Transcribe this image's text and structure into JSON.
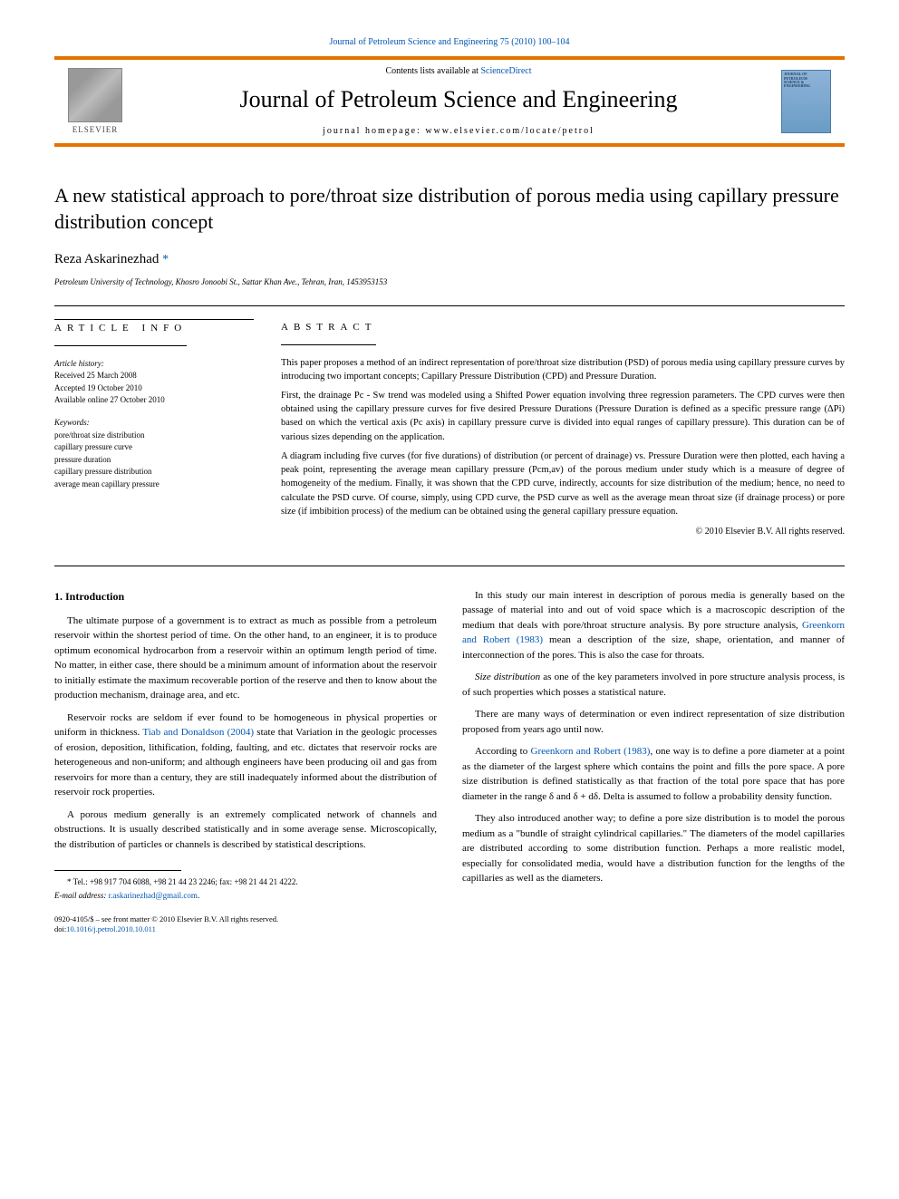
{
  "header": {
    "citation_prefix": "Journal of Petroleum Science and Engineering 75 (2010) 100–104",
    "contents_text": "Contents lists available at ",
    "contents_link": "ScienceDirect",
    "journal_name": "Journal of Petroleum Science and Engineering",
    "homepage_label": "journal homepage: ",
    "homepage_url": "www.elsevier.com/locate/petrol",
    "publisher_logo_label": "ELSEVIER",
    "cover_text_lines": [
      "JOURNAL OF",
      "PETROLEUM",
      "SCIENCE &",
      "ENGINEERING"
    ],
    "banner_accent": "#e47200",
    "link_color": "#0056b3"
  },
  "article": {
    "title": "A new statistical approach to pore/throat size distribution of porous media using capillary pressure distribution concept",
    "author_name": "Reza Askarinezhad",
    "author_mark": "*",
    "affiliation": "Petroleum University of Technology, Khosro Jonoobi St., Sattar Khan Ave., Tehran, Iran, 1453953153"
  },
  "info": {
    "label": "ARTICLE INFO",
    "history_title": "Article history:",
    "history": [
      "Received 25 March 2008",
      "Accepted 19 October 2010",
      "Available online 27 October 2010"
    ],
    "keywords_title": "Keywords:",
    "keywords": [
      "pore/throat size distribution",
      "capillary pressure curve",
      "pressure duration",
      "capillary pressure distribution",
      "average mean capillary pressure"
    ]
  },
  "abstract": {
    "label": "ABSTRACT",
    "paragraphs": [
      "This paper proposes a method of an indirect representation of pore/throat size distribution (PSD) of porous media using capillary pressure curves by introducing two important concepts; Capillary Pressure Distribution (CPD) and Pressure Duration.",
      "First, the drainage Pc - Sw trend was modeled using a Shifted Power equation involving three regression parameters. The CPD curves were then obtained using the capillary pressure curves for five desired Pressure Durations (Pressure Duration is defined as a specific pressure range (ΔPi) based on which the vertical axis (Pc axis) in capillary pressure curve is divided into equal ranges of capillary pressure). This duration can be of various sizes depending on the application.",
      "A diagram including five curves (for five durations) of distribution (or percent of drainage) vs. Pressure Duration were then plotted, each having a peak point, representing the average mean capillary pressure (Pcm,av) of the porous medium under study which is a measure of degree of homogeneity of the medium. Finally, it was shown that the CPD curve, indirectly, accounts for size distribution of the medium; hence, no need to calculate the PSD curve. Of course, simply, using CPD curve, the PSD curve as well as the average mean throat size (if drainage process) or pore size (if imbibition process) of the medium can be obtained using the general capillary pressure equation."
    ],
    "copyright": "© 2010 Elsevier B.V. All rights reserved."
  },
  "body": {
    "section_heading": "1. Introduction",
    "paragraphs": [
      "The ultimate purpose of a government is to extract as much as possible from a petroleum reservoir within the shortest period of time. On the other hand, to an engineer, it is to produce optimum economical hydrocarbon from a reservoir within an optimum length period of time. No matter, in either case, there should be a minimum amount of information about the reservoir to initially estimate the maximum recoverable portion of the reserve and then to know about the production mechanism, drainage area, and etc.",
      "Reservoir rocks are seldom if ever found to be homogeneous in physical properties or uniform in thickness. <a href=\"#\" data-name=\"ref-tiab-donaldson\" data-interactable=\"true\">Tiab and Donaldson (2004)</a> state that Variation in the geologic processes of erosion, deposition, lithification, folding, faulting, and etc. dictates that reservoir rocks are heterogeneous and non-uniform; and although engineers have been producing oil and gas from reservoirs for more than a century, they are still inadequately informed about the distribution of reservoir rock properties.",
      "A porous medium generally is an extremely complicated network of channels and obstructions. It is usually described statistically and in some average sense. Microscopically, the distribution of particles or channels is described by statistical descriptions.",
      "In this study our main interest in description of porous media is generally based on the passage of material into and out of void space which is a macroscopic description of the medium that deals with pore/throat structure analysis. By pore structure analysis, <a href=\"#\" data-name=\"ref-greenkorn-1\" data-interactable=\"true\">Greenkorn and Robert (1983)</a> mean a description of the size, shape, orientation, and manner of interconnection of the pores. This is also the case for throats.",
      "<em>Size distribution</em> as one of the key parameters involved in pore structure analysis process, is of such properties which posses a statistical nature.",
      "There are many ways of determination or even indirect representation of size distribution proposed from years ago until now.",
      "According to <a href=\"#\" data-name=\"ref-greenkorn-2\" data-interactable=\"true\">Greenkorn and Robert (1983)</a>, one way is to define a pore diameter at a point as the diameter of the largest sphere which contains the point and fills the pore space. A pore size distribution is defined statistically as that fraction of the total pore space that has pore diameter in the range δ and δ + dδ. Delta is assumed to follow a probability density function.",
      "They also introduced another way; to define a pore size distribution is to model the porous medium as a \"bundle of straight cylindrical capillaries.\" The diameters of the model capillaries are distributed according to some distribution function. Perhaps a more realistic model, especially for consolidated media, would have a distribution function for the lengths of the capillaries as well as the diameters."
    ]
  },
  "footnote": {
    "tel_line": "* Tel.: +98 917 704 6088, +98 21 44 23 2246; fax: +98 21 44 21 4222.",
    "email_label": "E-mail address: ",
    "email": "r.askarinezhad@gmail.com",
    "email_suffix": "."
  },
  "footer": {
    "line1": "0920-4105/$ – see front matter © 2010 Elsevier B.V. All rights reserved.",
    "doi_label": "doi:",
    "doi": "10.1016/j.petrol.2010.10.011"
  }
}
